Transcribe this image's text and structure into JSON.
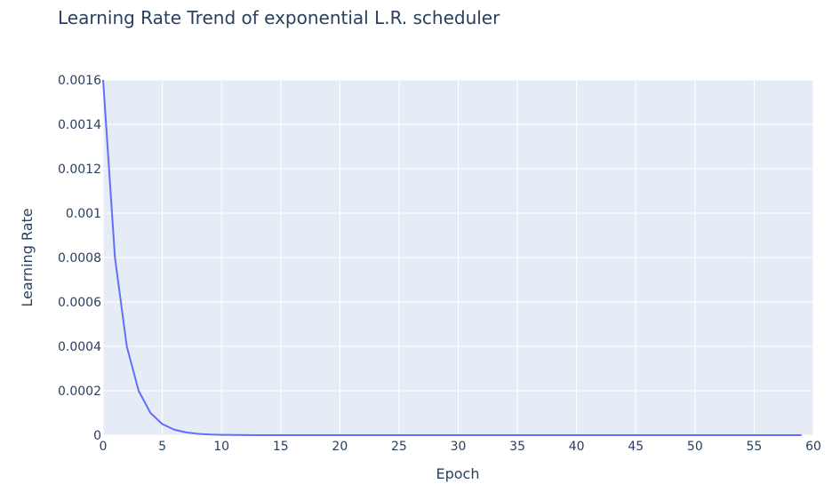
{
  "chart_data": {
    "type": "line",
    "title": "Learning Rate Trend of exponential L.R. scheduler",
    "xlabel": "Epoch",
    "ylabel": "Learning Rate",
    "xlim": [
      0,
      60
    ],
    "ylim": [
      0,
      0.0016
    ],
    "x_ticks": [
      0,
      5,
      10,
      15,
      20,
      25,
      30,
      35,
      40,
      45,
      50,
      55,
      60
    ],
    "x_tick_labels": [
      "0",
      "5",
      "10",
      "15",
      "20",
      "25",
      "30",
      "35",
      "40",
      "45",
      "50",
      "55",
      "60"
    ],
    "y_ticks": [
      0,
      0.0002,
      0.0004,
      0.0006,
      0.0008,
      0.001,
      0.0012,
      0.0014,
      0.0016
    ],
    "y_tick_labels": [
      "0",
      "0.0002",
      "0.0004",
      "0.0006",
      "0.0008",
      "0.001",
      "0.0012",
      "0.0014",
      "0.0016"
    ],
    "grid": true,
    "colors": {
      "plot_background": "#e5ecf6",
      "grid": "#ffffff",
      "line": "#636efa",
      "text": "#2a3f5f"
    },
    "series": [
      {
        "x": [
          0,
          1,
          2,
          3,
          4,
          5,
          6,
          7,
          8,
          9,
          10,
          11,
          12,
          13,
          14,
          15,
          16,
          17,
          18,
          19,
          20,
          21,
          22,
          23,
          24,
          25,
          26,
          27,
          28,
          29,
          30,
          31,
          32,
          33,
          34,
          35,
          36,
          37,
          38,
          39,
          40,
          41,
          42,
          43,
          44,
          45,
          46,
          47,
          48,
          49,
          50,
          51,
          52,
          53,
          54,
          55,
          56,
          57,
          58,
          59
        ],
        "values": [
          0.0016,
          0.0008,
          0.0004,
          0.0002,
          0.0001,
          5e-05,
          2.5e-05,
          1.25e-05,
          6.25e-06,
          3.125e-06,
          1.5625e-06,
          7.8125e-07,
          3.90625e-07,
          1.953125e-07,
          9.765625e-08,
          4.8828125e-08,
          2.44140625e-08,
          1.220703125e-08,
          6.103515625e-09,
          3.0517578125e-09,
          1.52587890625e-09,
          0,
          0,
          0,
          0,
          0,
          0,
          0,
          0,
          0,
          0,
          0,
          0,
          0,
          0,
          0,
          0,
          0,
          0,
          0,
          0,
          0,
          0,
          0,
          0,
          0,
          0,
          0,
          0,
          0,
          0,
          0,
          0,
          0,
          0,
          0,
          0,
          0,
          0,
          0
        ]
      }
    ]
  }
}
